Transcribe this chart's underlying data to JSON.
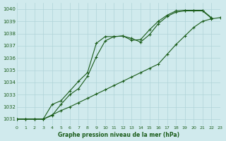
{
  "xlabel": "Graphe pression niveau de la mer (hPa)",
  "bg_color": "#d0eaed",
  "grid_color": "#b0d4d8",
  "line_color": "#1a5c1a",
  "xmin": 0,
  "xmax": 23,
  "ymin": 1030.5,
  "ymax": 1040.5,
  "yticks": [
    1031,
    1032,
    1033,
    1034,
    1035,
    1036,
    1037,
    1038,
    1039,
    1040
  ],
  "xticks": [
    0,
    1,
    2,
    3,
    4,
    5,
    6,
    7,
    8,
    9,
    10,
    11,
    12,
    13,
    14,
    15,
    16,
    17,
    18,
    19,
    20,
    21,
    22,
    23
  ],
  "line1_x": [
    0,
    1,
    2,
    3,
    4,
    5,
    6,
    7,
    8,
    9,
    10,
    11,
    12,
    13,
    14,
    15,
    16,
    17,
    18,
    19,
    20,
    21,
    22
  ],
  "line1_y": [
    1031.0,
    1031.0,
    1031.0,
    1031.0,
    1032.2,
    1032.5,
    1033.3,
    1034.1,
    1034.8,
    1037.2,
    1037.75,
    1037.75,
    1037.8,
    1037.45,
    1037.5,
    1038.3,
    1039.0,
    1039.5,
    1039.85,
    1039.9,
    1039.9,
    1039.9,
    1039.3
  ],
  "line2_x": [
    0,
    1,
    2,
    3,
    4,
    5,
    6,
    7,
    8,
    9,
    10,
    11,
    12,
    13,
    14,
    15,
    16,
    17,
    18,
    19,
    20,
    21,
    22
  ],
  "line2_y": [
    1031.0,
    1031.0,
    1031.0,
    1031.0,
    1031.3,
    1032.2,
    1033.0,
    1033.5,
    1034.5,
    1036.1,
    1037.4,
    1037.75,
    1037.8,
    1037.6,
    1037.3,
    1037.9,
    1038.8,
    1039.4,
    1039.75,
    1039.85,
    1039.85,
    1039.85,
    1039.25
  ],
  "line3_x": [
    0,
    1,
    2,
    3,
    4,
    5,
    6,
    7,
    8,
    9,
    10,
    11,
    12,
    13,
    14,
    15,
    16,
    17,
    18,
    19,
    20,
    21,
    22,
    23
  ],
  "line3_y": [
    1031.0,
    1031.0,
    1031.0,
    1031.0,
    1031.35,
    1031.7,
    1032.0,
    1032.35,
    1032.7,
    1033.05,
    1033.4,
    1033.75,
    1034.1,
    1034.45,
    1034.8,
    1035.15,
    1035.5,
    1036.3,
    1037.1,
    1037.8,
    1038.5,
    1039.0,
    1039.2,
    1039.3
  ]
}
